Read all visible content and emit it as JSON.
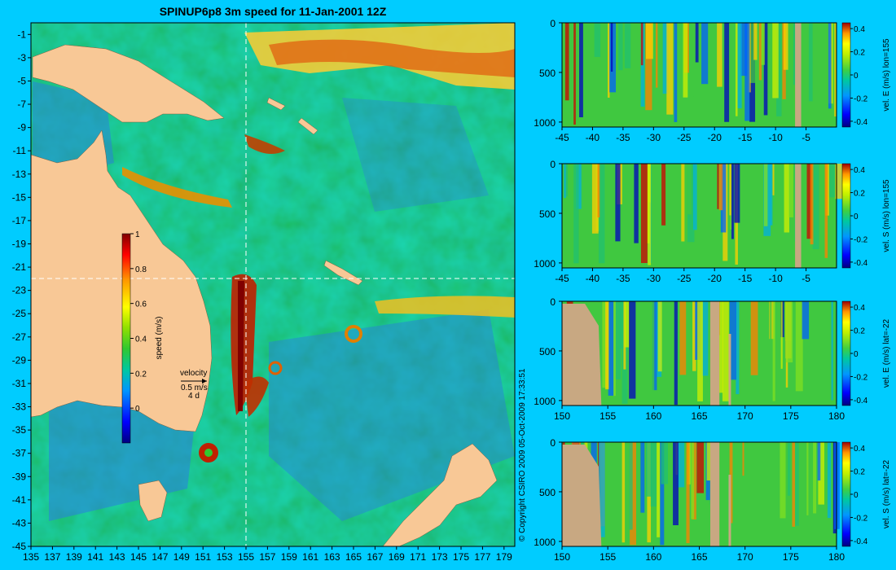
{
  "title": "SPINUP6p8 3m speed for 11-Jan-2001 12Z",
  "copyright": "© Copyright CSIRO 2009   05-Oct-2009 17:33:51",
  "colors": {
    "background": "#00ccff",
    "land": "#f8c896",
    "section_land": "#c8a882",
    "colormap": [
      "#000080",
      "#0000ff",
      "#0096ff",
      "#00c8a0",
      "#30c830",
      "#90e000",
      "#ffff00",
      "#ff9600",
      "#ff0000",
      "#800000"
    ]
  },
  "chart_data": [
    {
      "type": "heatmap",
      "name_in_image": "map",
      "title": "SPINUP6p8 3m speed for 11-Jan-2001 12Z",
      "x_ticks": [
        135,
        137,
        139,
        141,
        143,
        145,
        147,
        149,
        151,
        153,
        155,
        157,
        159,
        161,
        163,
        165,
        167,
        169,
        171,
        173,
        175,
        177,
        179
      ],
      "y_ticks": [
        -1,
        -3,
        -5,
        -7,
        -9,
        -11,
        -13,
        -15,
        -17,
        -19,
        -21,
        -23,
        -25,
        -27,
        -29,
        -31,
        -33,
        -35,
        -37,
        -39,
        -41,
        -43,
        -45
      ],
      "xlim": [
        135,
        180
      ],
      "ylim": [
        -45,
        0
      ],
      "section_lines": {
        "lon": 155,
        "lat": -22
      },
      "colorbar": {
        "label": "speed (m/s)",
        "ticks": [
          0,
          0.2,
          0.4,
          0.6,
          0.8,
          1
        ],
        "range": [
          -0.2,
          1
        ]
      },
      "velocity_key": {
        "label": "velocity",
        "speed": "0.5 m/s",
        "duration": "4 d"
      }
    },
    {
      "type": "heatmap",
      "name_in_image": "section-1",
      "x_ticks": [
        "-45",
        "-40",
        "-35",
        "-30",
        "-25",
        "-20",
        "-15",
        "-10",
        "-5"
      ],
      "xlim": [
        -45,
        0
      ],
      "y_ticks": [
        "0",
        "500",
        "1000"
      ],
      "ylim": [
        1050,
        0
      ],
      "colorbar": {
        "label": "vel. E (m/s) lon=155",
        "ticks": [
          "0.4",
          "0.2",
          "0",
          "-0.2",
          "-0.4"
        ],
        "range": [
          -0.45,
          0.45
        ]
      }
    },
    {
      "type": "heatmap",
      "name_in_image": "section-2",
      "x_ticks": [
        "-45",
        "-40",
        "-35",
        "-30",
        "-25",
        "-20",
        "-15",
        "-10",
        "-5"
      ],
      "xlim": [
        -45,
        0
      ],
      "y_ticks": [
        "0",
        "500",
        "1000"
      ],
      "ylim": [
        1050,
        0
      ],
      "colorbar": {
        "label": "vel. S (m/s) lon=155",
        "ticks": [
          "0.4",
          "0.2",
          "0",
          "-0.2",
          "-0.4"
        ],
        "range": [
          -0.45,
          0.45
        ]
      }
    },
    {
      "type": "heatmap",
      "name_in_image": "section-3",
      "x_ticks": [
        "150",
        "155",
        "160",
        "165",
        "170",
        "175",
        "180"
      ],
      "xlim": [
        150,
        180
      ],
      "y_ticks": [
        "0",
        "500",
        "1000"
      ],
      "ylim": [
        1050,
        0
      ],
      "colorbar": {
        "label": "vel. E (m/s) lat=-22",
        "ticks": [
          "0.4",
          "0.2",
          "0",
          "-0.2",
          "-0.4"
        ],
        "range": [
          -0.45,
          0.45
        ]
      }
    },
    {
      "type": "heatmap",
      "name_in_image": "section-4",
      "x_ticks": [
        "150",
        "155",
        "160",
        "165",
        "170",
        "175",
        "180"
      ],
      "xlim": [
        150,
        180
      ],
      "y_ticks": [
        "0",
        "500",
        "1000"
      ],
      "ylim": [
        1050,
        0
      ],
      "colorbar": {
        "label": "vel. S (m/s) lat=-22",
        "ticks": [
          "0.4",
          "0.2",
          "0",
          "-0.2",
          "-0.4"
        ],
        "range": [
          -0.45,
          0.45
        ]
      }
    }
  ]
}
